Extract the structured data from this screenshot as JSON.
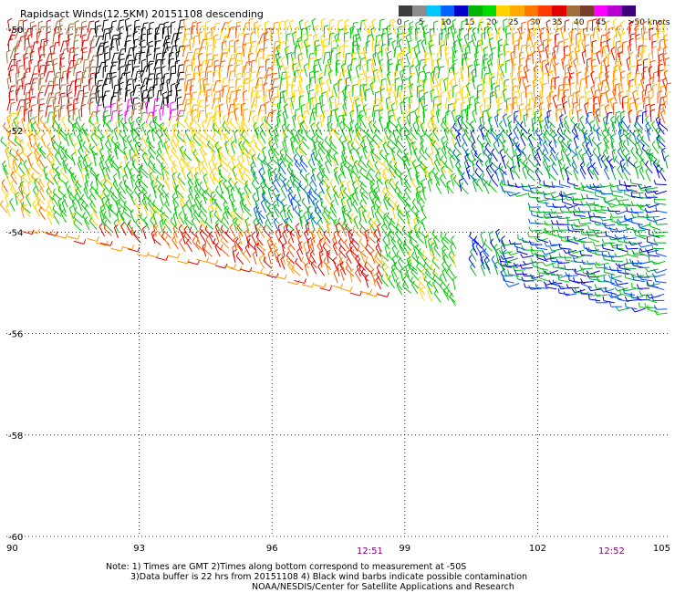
{
  "title": "Rapidsact Winds(12.5KM) 20151108 descending",
  "legend": {
    "labels": [
      "0",
      "5",
      "10",
      "15",
      "20",
      "25",
      "30",
      "35",
      "40",
      "45",
      ">50 knots"
    ],
    "colors": [
      "#3c3c3c",
      "#8c8c8c",
      "#00c8ff",
      "#0064ff",
      "#0000c8",
      "#00b400",
      "#00dc00",
      "#ffd200",
      "#ffaa00",
      "#ff7800",
      "#ff3c00",
      "#e10000",
      "#a06e3c",
      "#783c28",
      "#ff00ff",
      "#b400d2",
      "#3c0078"
    ]
  },
  "map": {
    "lon_range": [
      90,
      105
    ],
    "lat_range": [
      -60,
      -50
    ],
    "lon_ticks": [
      "90",
      "93",
      "96",
      "99",
      "102",
      "105"
    ],
    "lat_ticks": [
      "-50",
      "-52",
      "-54",
      "-56",
      "-58",
      "-60"
    ]
  },
  "times": [
    "12:51",
    "12:52"
  ],
  "notes": [
    "Note: 1) Times are GMT 2)Times along bottom correspond to measurement at -50S",
    "3)Data buffer is 22 hrs from 20151108 4) Black wind barbs indicate possible contamination",
    "NOAA/NESDIS/Center for Satellite Applications and Research"
  ]
}
